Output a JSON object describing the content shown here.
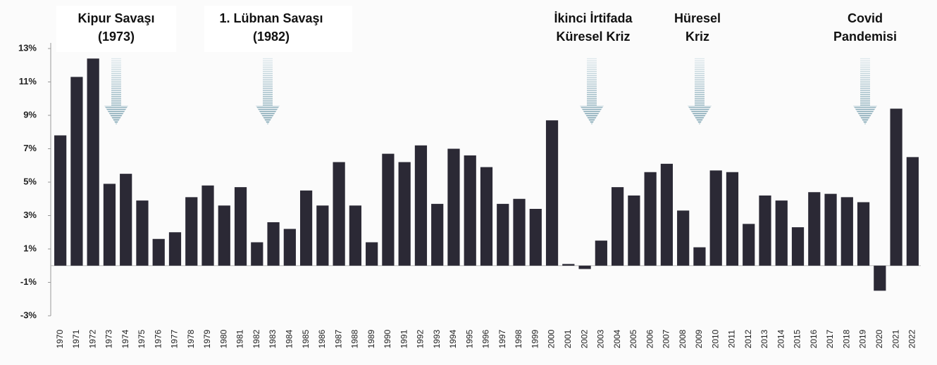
{
  "chart_data": {
    "type": "bar",
    "categories": [
      "1970",
      "1971",
      "1972",
      "1973",
      "1974",
      "1975",
      "1976",
      "1977",
      "1978",
      "1979",
      "1980",
      "1981",
      "1982",
      "1983",
      "1984",
      "1985",
      "1986",
      "1987",
      "1988",
      "1989",
      "1990",
      "1991",
      "1992",
      "1993",
      "1994",
      "1995",
      "1996",
      "1997",
      "1998",
      "1999",
      "2000",
      "2001",
      "2002",
      "2003",
      "2004",
      "2005",
      "2006",
      "2007",
      "2008",
      "2009",
      "2010",
      "2011",
      "2012",
      "2013",
      "2014",
      "2015",
      "2016",
      "2017",
      "2018",
      "2019",
      "2020",
      "2021",
      "2022"
    ],
    "values": [
      7.8,
      11.3,
      12.4,
      4.9,
      5.5,
      3.9,
      1.6,
      2.0,
      4.1,
      4.8,
      3.6,
      4.7,
      1.4,
      2.6,
      2.2,
      4.5,
      3.6,
      6.2,
      3.6,
      1.4,
      6.7,
      6.2,
      7.2,
      3.7,
      7.0,
      6.6,
      5.9,
      3.7,
      4.0,
      3.4,
      8.7,
      0.1,
      -0.2,
      1.5,
      4.7,
      4.2,
      5.6,
      6.1,
      3.3,
      1.1,
      5.7,
      5.6,
      2.5,
      4.2,
      3.9,
      2.3,
      4.4,
      4.3,
      4.1,
      3.8,
      -1.5,
      9.4,
      6.5
    ],
    "color": "#2b2935",
    "ylim": [
      -3,
      13
    ],
    "yticks": [
      {
        "value": 13,
        "label": "13%"
      },
      {
        "value": 11,
        "label": "11%"
      },
      {
        "value": 9,
        "label": "9%"
      },
      {
        "value": 7,
        "label": "7%"
      },
      {
        "value": 5,
        "label": "5%"
      },
      {
        "value": 3,
        "label": "3%"
      },
      {
        "value": 1,
        "label": "1%"
      },
      {
        "value": -1,
        "label": "-1%"
      },
      {
        "value": -3,
        "label": "-3%"
      }
    ],
    "grid": false,
    "annotations": [
      [
        "Kipur Savaşı",
        "(1973)"
      ],
      [
        "1. Lübnan Savaşı",
        "(1982)"
      ],
      [
        "İkinci İrtifada",
        "Küresel Kriz"
      ],
      [
        "Hüresel",
        "Kriz"
      ],
      [
        "Covid",
        "Pandemisi"
      ]
    ]
  }
}
